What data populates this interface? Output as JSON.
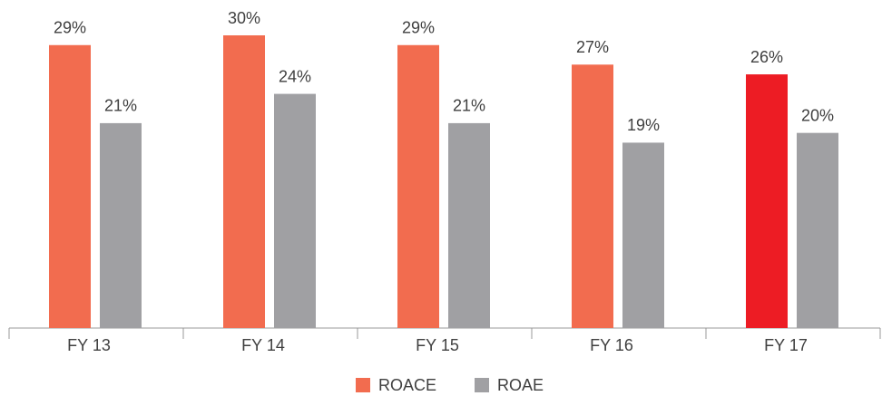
{
  "chart_data": {
    "type": "bar",
    "categories": [
      "FY 13",
      "FY 14",
      "FY 15",
      "FY 16",
      "FY 17"
    ],
    "series": [
      {
        "name": "ROACE",
        "color": "#f26c4f",
        "colors": [
          "#f26c4f",
          "#f26c4f",
          "#f26c4f",
          "#f26c4f",
          "#ed1c24"
        ],
        "values": [
          29,
          30,
          29,
          27,
          26
        ],
        "value_labels": [
          "29%",
          "30%",
          "29%",
          "27%",
          "26%"
        ]
      },
      {
        "name": "ROAE",
        "color": "#a0a0a3",
        "values": [
          21,
          24,
          21,
          19,
          20
        ],
        "value_labels": [
          "21%",
          "24%",
          "21%",
          "19%",
          "20%"
        ]
      }
    ],
    "ylim": [
      0,
      30
    ],
    "legend": "bottom"
  }
}
